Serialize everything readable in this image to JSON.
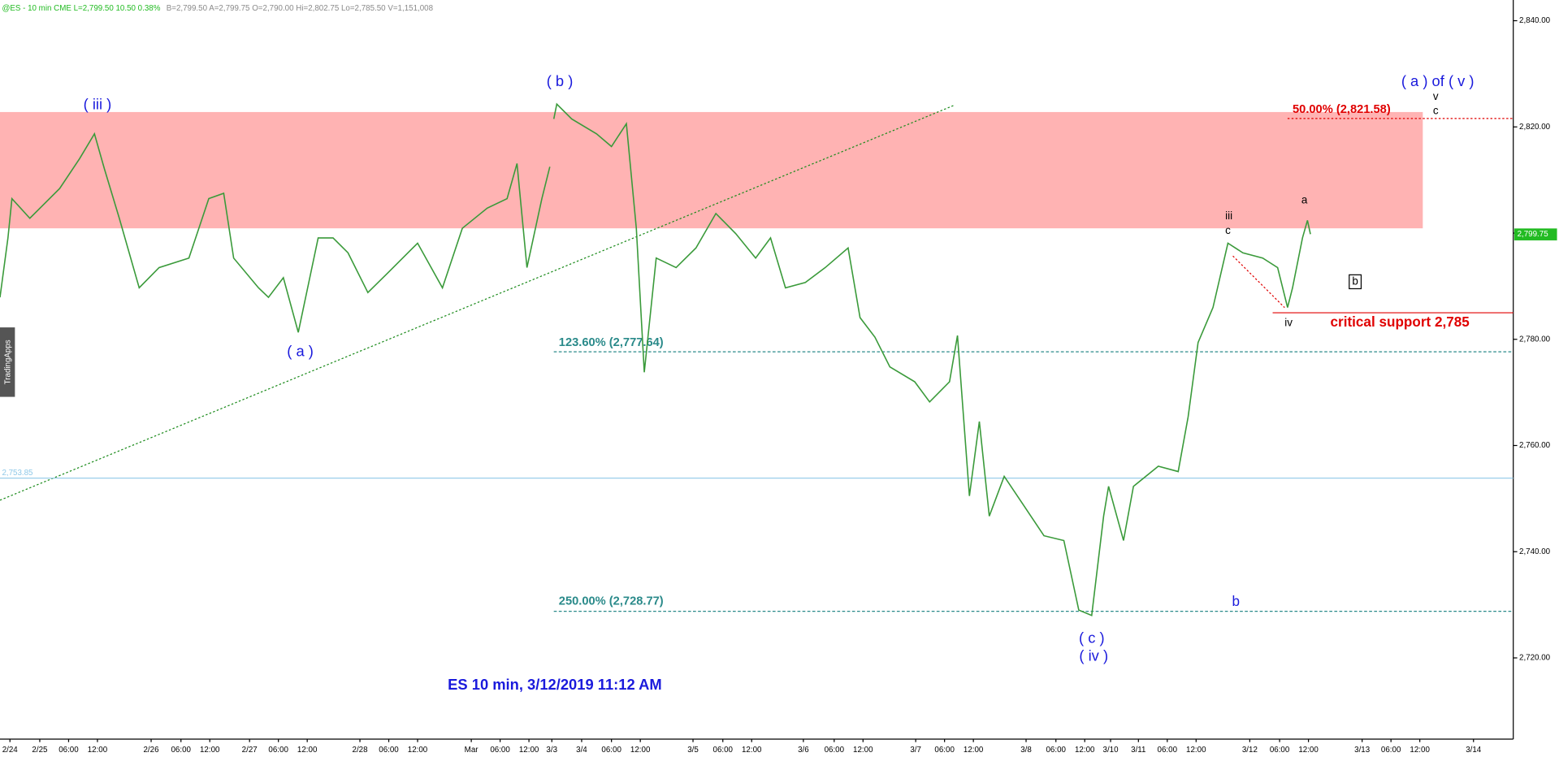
{
  "chart_data": {
    "type": "line",
    "header": [
      {
        "text": "@ES - 10 min  CME  L=2,799.50  10.50  0.38%",
        "color": "#22bb22"
      },
      {
        "text": "B=2,799.50  A=2,799.75  O=2,790.00  Hi=2,802.75  Lo=2,785.50  V=1,151,008",
        "color": "#8a8a8a"
      }
    ],
    "title": "ES 10 min, 3/12/2019 11:12 AM",
    "side_tab": "TradingApps",
    "xlim": [
      0,
      1522
    ],
    "ylim": [
      2704.7,
      2843.9
    ],
    "yticks": [
      {
        "value": 2720,
        "label": "2,720.00"
      },
      {
        "value": 2740,
        "label": "2,740.00"
      },
      {
        "value": 2760,
        "label": "2,760.00"
      },
      {
        "value": 2780,
        "label": "2,780.00"
      },
      {
        "value": 2800,
        "label": "2,800.00"
      },
      {
        "value": 2820,
        "label": "2,820.00"
      },
      {
        "value": 2840,
        "label": "2,840.00"
      }
    ],
    "xticks": [
      {
        "value": 10,
        "label": "2/24"
      },
      {
        "value": 40,
        "label": "2/25"
      },
      {
        "value": 69,
        "label": "06:00"
      },
      {
        "value": 98,
        "label": "12:00"
      },
      {
        "value": 152,
        "label": "2/26"
      },
      {
        "value": 182,
        "label": "06:00"
      },
      {
        "value": 211,
        "label": "12:00"
      },
      {
        "value": 251,
        "label": "2/27"
      },
      {
        "value": 280,
        "label": "06:00"
      },
      {
        "value": 309,
        "label": "12:00"
      },
      {
        "value": 362,
        "label": "2/28"
      },
      {
        "value": 391,
        "label": "06:00"
      },
      {
        "value": 420,
        "label": "12:00"
      },
      {
        "value": 474,
        "label": "Mar"
      },
      {
        "value": 503,
        "label": "06:00"
      },
      {
        "value": 532,
        "label": "12:00"
      },
      {
        "value": 555,
        "label": "3/3"
      },
      {
        "value": 585,
        "label": "3/4"
      },
      {
        "value": 615,
        "label": "06:00"
      },
      {
        "value": 644,
        "label": "12:00"
      },
      {
        "value": 697,
        "label": "3/5"
      },
      {
        "value": 727,
        "label": "06:00"
      },
      {
        "value": 756,
        "label": "12:00"
      },
      {
        "value": 808,
        "label": "3/6"
      },
      {
        "value": 839,
        "label": "06:00"
      },
      {
        "value": 868,
        "label": "12:00"
      },
      {
        "value": 921,
        "label": "3/7"
      },
      {
        "value": 950,
        "label": "06:00"
      },
      {
        "value": 979,
        "label": "12:00"
      },
      {
        "value": 1032,
        "label": "3/8"
      },
      {
        "value": 1062,
        "label": "06:00"
      },
      {
        "value": 1091,
        "label": "12:00"
      },
      {
        "value": 1117,
        "label": "3/10"
      },
      {
        "value": 1145,
        "label": "3/11"
      },
      {
        "value": 1174,
        "label": "06:00"
      },
      {
        "value": 1203,
        "label": "12:00"
      },
      {
        "value": 1257,
        "label": "3/12"
      },
      {
        "value": 1287,
        "label": "06:00"
      },
      {
        "value": 1316,
        "label": "12:00"
      },
      {
        "value": 1370,
        "label": "3/13"
      },
      {
        "value": 1399,
        "label": "06:00"
      },
      {
        "value": 1428,
        "label": "12:00"
      },
      {
        "value": 1482,
        "label": "3/14"
      }
    ],
    "x": [
      0,
      8,
      12,
      30,
      60,
      80,
      95,
      105,
      120,
      140,
      160,
      190,
      210,
      225,
      235,
      260,
      270,
      285,
      300,
      320,
      335,
      350,
      370,
      390,
      420,
      445,
      465,
      490,
      510,
      520,
      530,
      545,
      553,
      555,
      557,
      560,
      575,
      600,
      615,
      630,
      640,
      648,
      660,
      680,
      700,
      720,
      740,
      760,
      775,
      790,
      810,
      830,
      853,
      865,
      880,
      895,
      920,
      935,
      955,
      963,
      975,
      985,
      995,
      1010,
      1030,
      1050,
      1070,
      1085,
      1098,
      1110,
      1115,
      1130,
      1140,
      1165,
      1185,
      1195,
      1205,
      1220,
      1235,
      1250,
      1270,
      1285,
      1295,
      1300,
      1310,
      1315,
      1318
    ],
    "values": [
      2787.9,
      2799.1,
      2806.5,
      2802.8,
      2808.4,
      2814.0,
      2818.7,
      2812.1,
      2802.8,
      2789.7,
      2793.5,
      2795.3,
      2806.5,
      2807.5,
      2795.3,
      2789.7,
      2787.9,
      2791.6,
      2781.3,
      2799.1,
      2799.1,
      2796.3,
      2788.8,
      2792.5,
      2798.1,
      2789.7,
      2800.9,
      2804.7,
      2806.5,
      2813.1,
      2793.5,
      2806.5,
      2812.5,
      null,
      2821.5,
      2824.3,
      2821.5,
      2818.7,
      2816.3,
      2820.6,
      2800.9,
      2773.8,
      2795.3,
      2793.5,
      2797.2,
      2803.7,
      2799.9,
      2795.3,
      2799.1,
      2789.7,
      2790.7,
      2793.5,
      2797.2,
      2784.1,
      2780.4,
      2774.8,
      2772.0,
      2768.2,
      2772.0,
      2780.7,
      2750.5,
      2764.5,
      2746.7,
      2754.2,
      2748.6,
      2743.0,
      2742.1,
      2729.0,
      2728.0,
      2746.7,
      2752.3,
      2742.1,
      2752.3,
      2756.1,
      2755.1,
      2765.4,
      2779.4,
      2786.0,
      2798.1,
      2796.3,
      2795.3,
      2793.5,
      2786.0,
      2789.7,
      2799.1,
      2802.4,
      2799.8
    ],
    "color": "#3a9a3a",
    "zone": {
      "from": 2800.9,
      "to": 2822.8,
      "color": "#ffb3b3"
    },
    "trendline": {
      "x": [
        0,
        960
      ],
      "values": [
        2749.7,
        2824.1
      ],
      "color": "#1a8a1a"
    },
    "levels": [
      {
        "value": 2821.58,
        "label": "50.00% (2,821.58)",
        "color": "#e00000"
      },
      {
        "value": 2777.64,
        "label": "123.60% (2,777.64)",
        "color": "#2a8a8a"
      },
      {
        "value": 2728.77,
        "label": "250.00% (2,728.77)",
        "color": "#2a8a8a"
      },
      {
        "value": 2785,
        "label": "critical support 2,785",
        "color": "#e00000"
      },
      {
        "value": 2753.85,
        "label": "2,753.85",
        "color": "#8ec8e8"
      }
    ],
    "last": {
      "value": 2799.75,
      "label": "2,799.75",
      "color": "#22bb22"
    },
    "annotations": [
      {
        "text": "( iii )",
        "color": "#1a1adc"
      },
      {
        "text": "( b )",
        "color": "#1a1adc"
      },
      {
        "text": "( a )",
        "color": "#1a1adc"
      },
      {
        "text": "( c )",
        "color": "#1a1adc"
      },
      {
        "text": "( iv )",
        "color": "#1a1adc"
      },
      {
        "text": "iii",
        "color": "#000000"
      },
      {
        "text": "c",
        "color": "#000000"
      },
      {
        "text": "a",
        "color": "#000000"
      },
      {
        "text": "b",
        "color": "#000000"
      },
      {
        "text": "iv",
        "color": "#000000"
      },
      {
        "text": "b",
        "color": "#1a1adc"
      },
      {
        "text": "( a ) of ( v )",
        "color": "#1a1adc"
      },
      {
        "text": "v",
        "color": "#000000"
      },
      {
        "text": "c",
        "color": "#000000"
      }
    ]
  }
}
